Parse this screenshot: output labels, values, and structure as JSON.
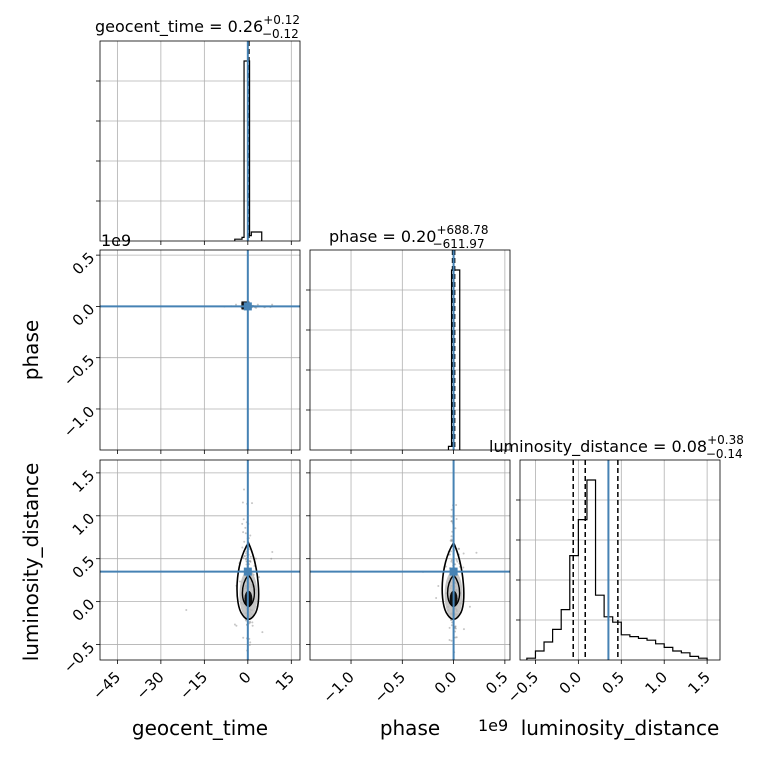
{
  "chart_data": {
    "type": "corner",
    "parameters": [
      "geocent_time",
      "phase",
      "luminosity_distance"
    ],
    "truths": {
      "geocent_time": 0.0,
      "phase": 0.0,
      "luminosity_distance": 0.35
    },
    "axes": {
      "geocent_time": {
        "label": "geocent_time",
        "range": [
          -51,
          18
        ],
        "ticks": [
          -45,
          -30,
          -15,
          0,
          15
        ],
        "tick_labels": [
          "−45",
          "−30",
          "−15",
          "0",
          "15"
        ]
      },
      "phase": {
        "label": "phase",
        "range": [
          -1.4,
          0.55
        ],
        "ticks": [
          -1.0,
          -0.5,
          0.0,
          0.5
        ],
        "tick_labels": [
          "−1.0",
          "−0.5",
          "0.0",
          "0.5"
        ],
        "offset_text": "1e9"
      },
      "luminosity_distance": {
        "label": "luminosity_distance",
        "range": [
          -0.68,
          1.65
        ],
        "ticks": [
          -0.5,
          0.0,
          0.5,
          1.0,
          1.5
        ],
        "tick_labels": [
          "−0.5",
          "0.0",
          "0.5",
          "1.0",
          "1.5"
        ]
      }
    },
    "titles": {
      "geocent_time": {
        "name": "geocent_time",
        "value": "0.26",
        "plus": "+0.12",
        "minus": "−0.12"
      },
      "phase": {
        "name": "phase",
        "value": "0.20",
        "plus": "+688.78",
        "minus": "−611.97"
      },
      "luminosity_distance": {
        "name": "luminosity_distance",
        "value": "0.08",
        "plus": "+0.38",
        "minus": "−0.14"
      }
    },
    "histograms": {
      "geocent_time": {
        "edges": [
          -4.5,
          -2.0,
          -1.3,
          0.6,
          1.2,
          4.8
        ],
        "counts": [
          0.01,
          0.02,
          1.0,
          0.03,
          0.05
        ],
        "quantiles": [
          0.14,
          0.26,
          0.38
        ]
      },
      "phase": {
        "edges": [
          -0.05,
          -0.02,
          0.0,
          0.06
        ],
        "counts": [
          0.02,
          1.0,
          1.0
        ],
        "quantiles": [
          -0.01,
          0.0,
          0.01
        ]
      },
      "luminosity_distance": {
        "edges": [
          -0.6,
          -0.5,
          -0.4,
          -0.3,
          -0.2,
          -0.1,
          0.0,
          0.1,
          0.2,
          0.3,
          0.4,
          0.5,
          0.6,
          0.7,
          0.8,
          0.9,
          1.0,
          1.1,
          1.2,
          1.3,
          1.4,
          1.5
        ],
        "counts": [
          0.01,
          0.05,
          0.1,
          0.17,
          0.28,
          0.58,
          0.78,
          1.0,
          0.36,
          0.24,
          0.21,
          0.14,
          0.13,
          0.12,
          0.11,
          0.09,
          0.07,
          0.05,
          0.04,
          0.02,
          0.01
        ],
        "quantiles": [
          -0.06,
          0.08,
          0.46
        ]
      }
    },
    "grid": true,
    "colors": {
      "truth": "#4682b4",
      "hist": "#000000",
      "scatter": "#808080",
      "contour": "#000000"
    }
  }
}
